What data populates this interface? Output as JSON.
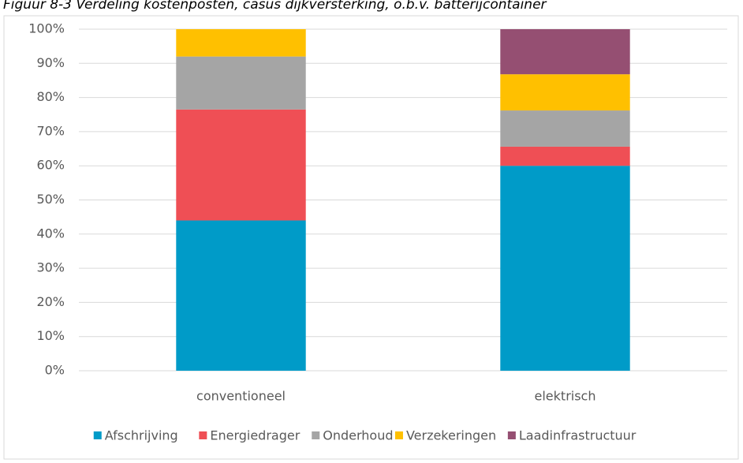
{
  "chart_data": {
    "type": "bar",
    "stacked": true,
    "title": "Figuur 8-3 Verdeling kostenposten, casus dijkversterking, o.b.v. batterijcontainer",
    "categories": [
      "conventioneel",
      "elektrisch"
    ],
    "series": [
      {
        "name": "Afschrijving",
        "color": "#009bc8",
        "values": [
          44,
          60
        ]
      },
      {
        "name": "Energiedrager",
        "color": "#ef4f55",
        "values": [
          32.5,
          5.6
        ]
      },
      {
        "name": "Onderhoud",
        "color": "#a5a5a5",
        "values": [
          15.5,
          10.6
        ]
      },
      {
        "name": "Verzekeringen",
        "color": "#ffc000",
        "values": [
          8,
          10.6
        ]
      },
      {
        "name": "Laadinfrastructuur",
        "color": "#954f72",
        "values": [
          0,
          13.2
        ]
      }
    ],
    "ylim": [
      0,
      100
    ],
    "yticks": [
      {
        "value": 0,
        "label": "0%"
      },
      {
        "value": 10,
        "label": "10%"
      },
      {
        "value": 20,
        "label": "20%"
      },
      {
        "value": 30,
        "label": "30%"
      },
      {
        "value": 40,
        "label": "40%"
      },
      {
        "value": 50,
        "label": "50%"
      },
      {
        "value": 60,
        "label": "60%"
      },
      {
        "value": 70,
        "label": "70%"
      },
      {
        "value": 80,
        "label": "80%"
      },
      {
        "value": 90,
        "label": "90%"
      },
      {
        "value": 100,
        "label": "100%"
      }
    ],
    "grid": true,
    "legend": "bottom"
  }
}
